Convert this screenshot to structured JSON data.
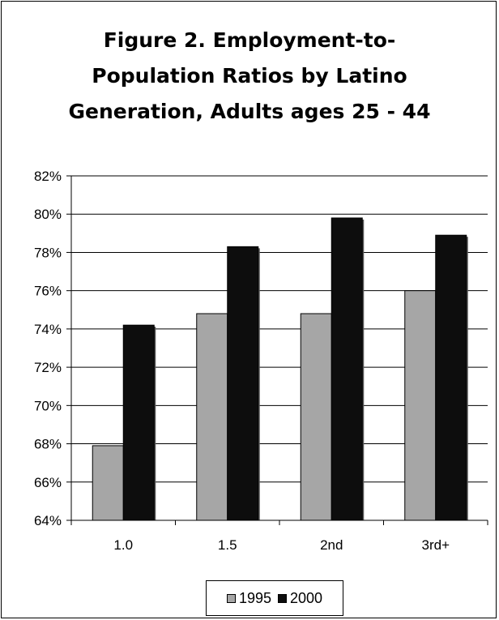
{
  "chart_data": {
    "type": "bar",
    "title_lines": [
      "Figure 2. Employment-to-",
      "Population Ratios by Latino",
      "Generation, Adults ages 25 - 44"
    ],
    "categories": [
      "1.0",
      "1.5",
      "2nd",
      "3rd+"
    ],
    "series": [
      {
        "name": "1995",
        "values": [
          67.9,
          74.8,
          74.8,
          76.0
        ],
        "color": "#a6a6a6"
      },
      {
        "name": "2000",
        "values": [
          74.2,
          78.3,
          79.8,
          78.9
        ],
        "color": "#0d0d0d"
      }
    ],
    "ylim": [
      64,
      82
    ],
    "yticks": [
      64,
      66,
      68,
      70,
      72,
      74,
      76,
      78,
      80,
      82
    ],
    "ytick_labels": [
      "64%",
      "66%",
      "68%",
      "70%",
      "72%",
      "74%",
      "76%",
      "78%",
      "80%",
      "82%"
    ],
    "grid": true,
    "legend": "bottom"
  }
}
